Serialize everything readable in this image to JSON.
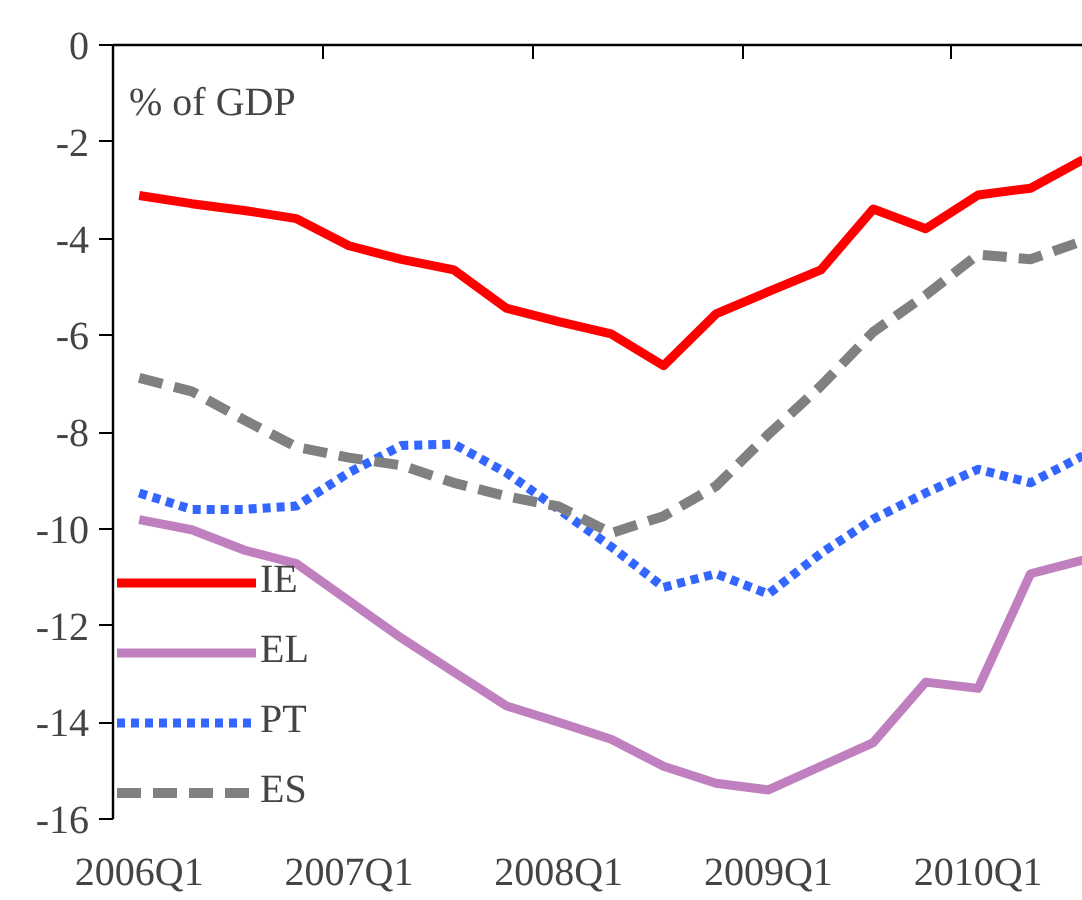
{
  "chart_data": {
    "type": "line",
    "categories": [
      "2006Q1",
      null,
      null,
      null,
      "2007Q1",
      null,
      null,
      null,
      "2008Q1",
      null,
      null,
      null,
      "2009Q1",
      null,
      null,
      null,
      "2010Q1",
      null,
      null
    ],
    "ylim": [
      -16,
      0
    ],
    "yticks": [
      -16,
      -14,
      -12,
      -10,
      -8,
      -6,
      -4,
      -2,
      0
    ],
    "grid": false,
    "legend": "bottom left",
    "marker": "none",
    "annotations": [
      "% of GDP"
    ],
    "series": [
      {
        "name": "IE",
        "color": "#ff0000",
        "line_style": "solid",
        "values": [
          -3.11,
          -3.28,
          -3.42,
          -3.59,
          -4.15,
          -4.43,
          -4.65,
          -5.44,
          -5.72,
          -5.97,
          -6.63,
          -5.56,
          -5.1,
          -4.65,
          -3.39,
          -3.8,
          -3.1,
          -2.96,
          -2.37
        ]
      },
      {
        "name": "EL",
        "color": "#c080c0",
        "line_style": "solid",
        "values": [
          -9.81,
          -10.02,
          -10.44,
          -10.72,
          -11.49,
          -12.26,
          -12.96,
          -13.66,
          -14.0,
          -14.35,
          -14.91,
          -15.26,
          -15.4,
          -14.91,
          -14.42,
          -13.17,
          -13.3,
          -10.93,
          -10.65
        ]
      },
      {
        "name": "PT",
        "color": "#3366ff",
        "line_style": "dashed",
        "values": [
          -9.26,
          -9.6,
          -9.6,
          -9.53,
          -8.84,
          -8.28,
          -8.25,
          -8.84,
          -9.6,
          -10.37,
          -11.21,
          -10.93,
          -11.35,
          -10.51,
          -9.8,
          -9.26,
          -8.77,
          -9.05,
          -8.49
        ]
      },
      {
        "name": "ES",
        "color": "#808080",
        "line_style": "longdash",
        "values": [
          -6.88,
          -7.16,
          -7.75,
          -8.31,
          -8.53,
          -8.69,
          -9.05,
          -9.33,
          -9.54,
          -10.09,
          -9.74,
          -9.12,
          -8.05,
          -7.05,
          -5.93,
          -5.17,
          -4.33,
          -4.43,
          -4.05
        ]
      }
    ]
  }
}
